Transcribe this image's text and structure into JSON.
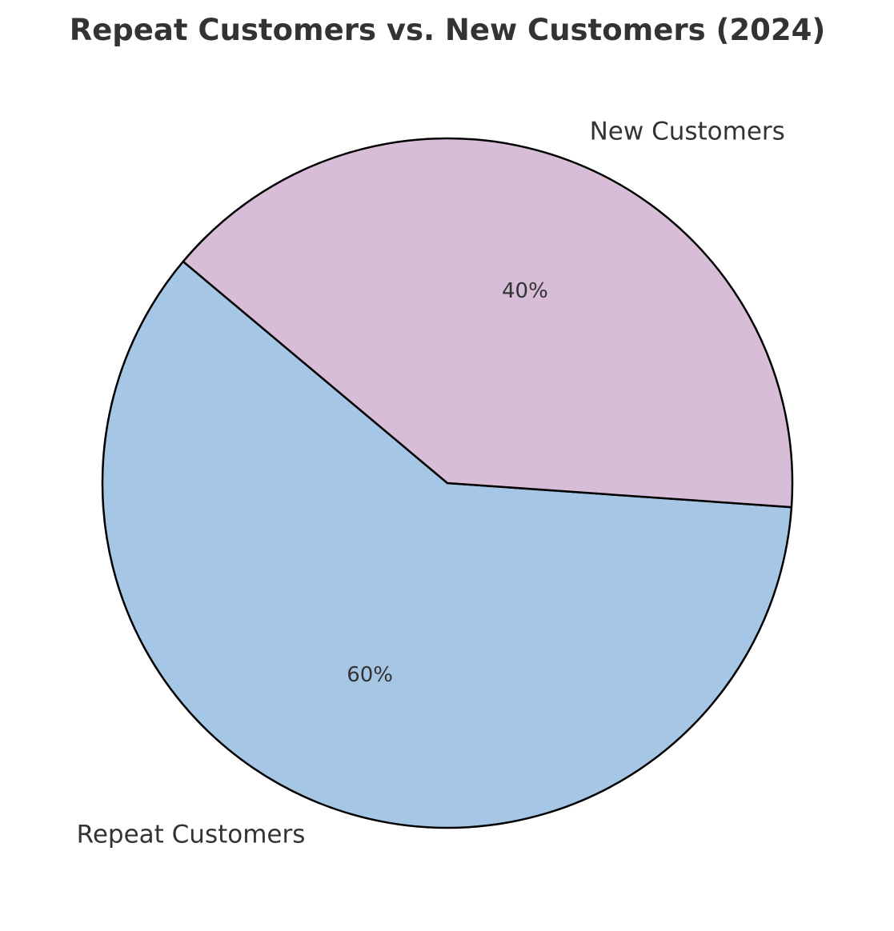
{
  "chart_data": {
    "type": "pie",
    "title": "Repeat Customers vs. New Customers (2024)",
    "categories": [
      "Repeat Customers",
      "New Customers"
    ],
    "values": [
      60,
      40
    ],
    "value_labels": [
      "60%",
      "40%"
    ],
    "colors": [
      "#a6c6e6",
      "#d7bdd7"
    ],
    "edge_color": "#000000"
  }
}
